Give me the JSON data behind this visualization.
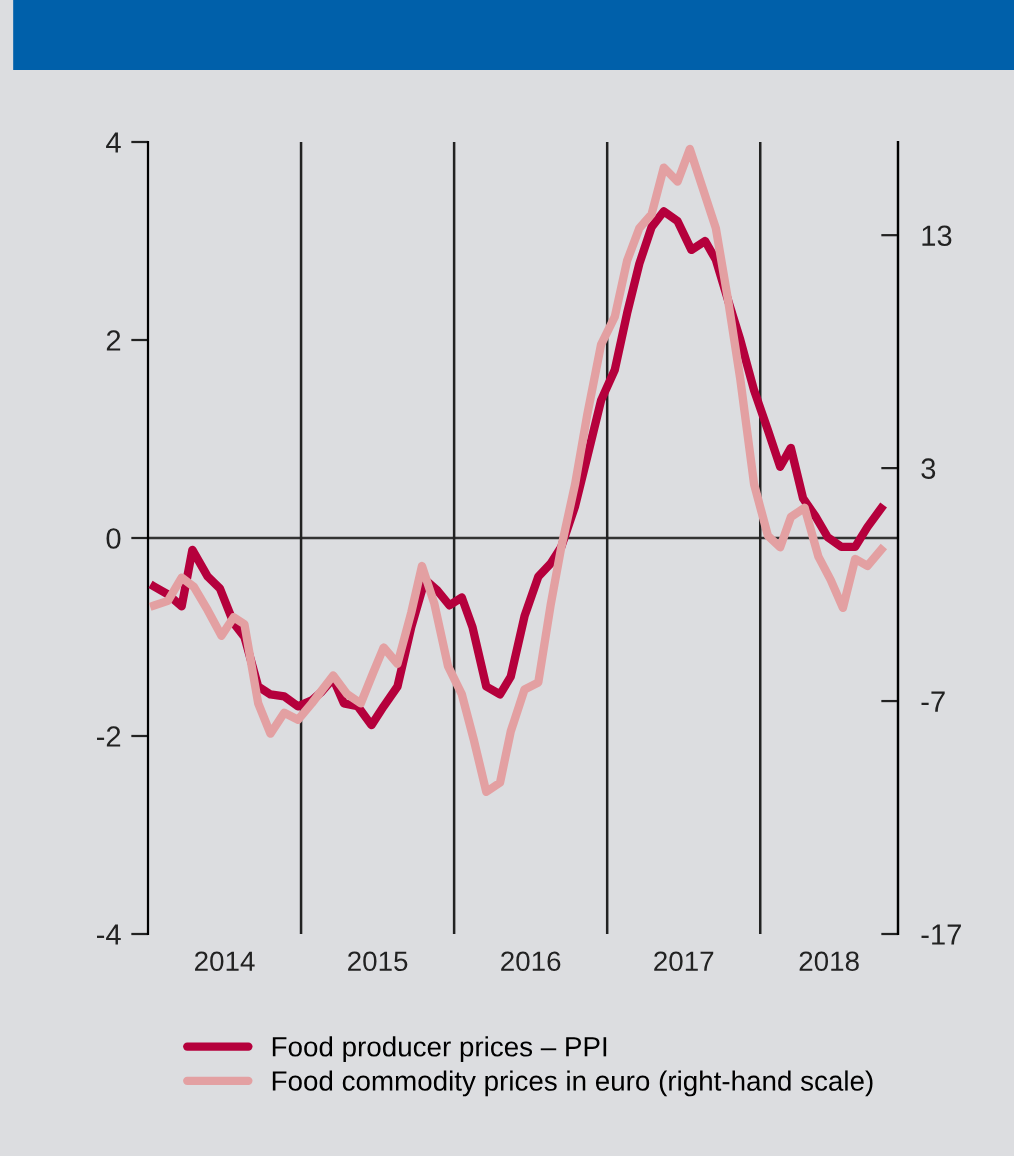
{
  "chart_data": {
    "type": "line",
    "series": [
      {
        "name": "Food producer prices – PPI",
        "color": "#b5003c",
        "x": [
          2014.04,
          2014.13,
          2014.22,
          2014.29,
          2014.39,
          2014.47,
          2014.56,
          2014.63,
          2014.72,
          2014.8,
          2014.89,
          2014.98,
          2015.07,
          2015.13,
          2015.21,
          2015.28,
          2015.37,
          2015.46,
          2015.54,
          2015.63,
          2015.72,
          2015.81,
          2015.89,
          2015.97,
          2016.05,
          2016.12,
          2016.21,
          2016.3,
          2016.37,
          2016.46,
          2016.55,
          2016.63,
          2016.7,
          2016.79,
          2016.87,
          2016.96,
          2017.05,
          2017.13,
          2017.21,
          2017.29,
          2017.37,
          2017.46,
          2017.55,
          2017.64,
          2017.71,
          2017.79,
          2017.87,
          2017.96,
          2018.05,
          2018.13,
          2018.2,
          2018.28,
          2018.36,
          2018.44,
          2018.53,
          2018.62,
          2018.7,
          2018.79
        ],
        "values": [
          -0.49,
          -0.57,
          -0.69,
          -0.12,
          -0.39,
          -0.51,
          -0.86,
          -1.0,
          -1.5,
          -1.58,
          -1.6,
          -1.7,
          -1.64,
          -1.56,
          -1.42,
          -1.67,
          -1.7,
          -1.89,
          -1.7,
          -1.5,
          -0.9,
          -0.42,
          -0.53,
          -0.68,
          -0.6,
          -0.9,
          -1.5,
          -1.58,
          -1.4,
          -0.79,
          -0.39,
          -0.26,
          -0.09,
          0.32,
          0.82,
          1.39,
          1.7,
          2.27,
          2.77,
          3.14,
          3.3,
          3.2,
          2.91,
          3.0,
          2.81,
          2.4,
          2.0,
          1.49,
          1.09,
          0.72,
          0.91,
          0.4,
          0.22,
          0.01,
          -0.09,
          -0.09,
          0.11,
          0.3
        ]
      },
      {
        "name": "Food commodity prices in euro (right-hand scale)",
        "color": "#e3a0a2",
        "axis": "y2",
        "x": [
          2014.04,
          2014.13,
          2014.22,
          2014.3,
          2014.39,
          2014.48,
          2014.56,
          2014.63,
          2014.72,
          2014.8,
          2014.89,
          2014.98,
          2015.07,
          2015.21,
          2015.3,
          2015.39,
          2015.47,
          2015.54,
          2015.63,
          2015.72,
          2015.79,
          2015.87,
          2015.96,
          2016.05,
          2016.13,
          2016.21,
          2016.3,
          2016.37,
          2016.46,
          2016.55,
          2016.63,
          2016.7,
          2016.79,
          2016.87,
          2016.96,
          2017.05,
          2017.13,
          2017.21,
          2017.29,
          2017.37,
          2017.46,
          2017.54,
          2017.62,
          2017.71,
          2017.79,
          2017.87,
          2017.96,
          2018.05,
          2018.13,
          2018.2,
          2018.29,
          2018.38,
          2018.46,
          2018.54,
          2018.62,
          2018.7,
          2018.79
        ],
        "values": [
          -2.9,
          -2.7,
          -1.7,
          -2.1,
          -3.1,
          -4.2,
          -3.4,
          -3.7,
          -7.1,
          -8.4,
          -7.5,
          -7.8,
          -7.1,
          -5.9,
          -6.7,
          -7.1,
          -5.8,
          -4.7,
          -5.4,
          -3.2,
          -1.2,
          -2.8,
          -5.5,
          -6.7,
          -8.7,
          -10.9,
          -10.5,
          -8.3,
          -6.5,
          -6.2,
          -2.9,
          -0.4,
          2.3,
          5.3,
          8.3,
          9.5,
          11.9,
          13.3,
          13.9,
          15.9,
          15.3,
          16.7,
          15.1,
          13.3,
          10.2,
          6.8,
          2.3,
          0.1,
          -0.4,
          0.9,
          1.3,
          -0.8,
          -1.8,
          -3.0,
          -0.9,
          -1.2,
          -0.5
        ]
      }
    ],
    "xlim": [
      2014,
      2018.9
    ],
    "xticks": [
      {
        "value": 2014.5,
        "label": "2014"
      },
      {
        "value": 2015.5,
        "label": "2015"
      },
      {
        "value": 2016.5,
        "label": "2016"
      },
      {
        "value": 2017.5,
        "label": "2017"
      },
      {
        "value": 2018.45,
        "label": "2018"
      }
    ],
    "ylim": [
      -4,
      4
    ],
    "yticks": [
      -4,
      -2,
      0,
      2,
      4
    ],
    "y2lim": [
      -17,
      17
    ],
    "y2ticks": [
      -17,
      -7,
      3,
      13
    ],
    "ref_lines": [
      {
        "axis": "y",
        "value": 0,
        "color": "#333333"
      },
      {
        "axis": "x",
        "value": 2015,
        "color": "#222222"
      },
      {
        "axis": "x",
        "value": 2016,
        "color": "#222222"
      },
      {
        "axis": "x",
        "value": 2017,
        "color": "#222222"
      },
      {
        "axis": "x",
        "value": 2018,
        "color": "#222222"
      }
    ],
    "grid": false,
    "legend": "bottom",
    "marker": "none",
    "line_style": "solid"
  }
}
